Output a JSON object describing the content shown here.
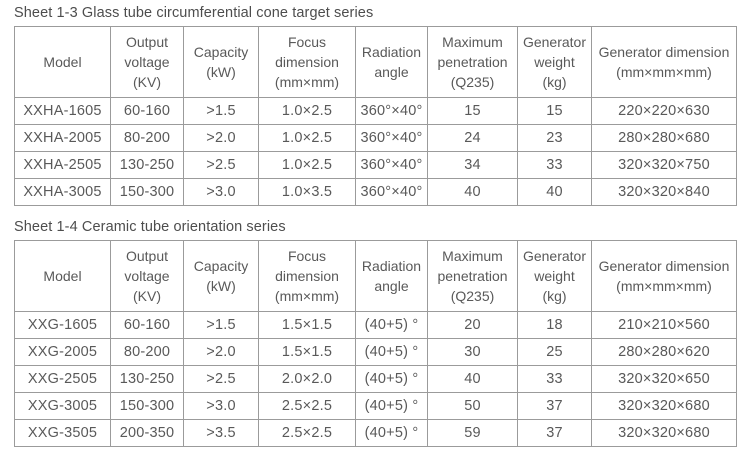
{
  "page": {
    "background_color": "#ffffff",
    "text_color": "#595959",
    "border_color": "#9b9b9b"
  },
  "tables": [
    {
      "title": "Sheet 1-3 Glass tube circumferential cone target series",
      "headers": [
        "Model",
        "Output\nvoltage\n(KV)",
        "Capacity\n(kW)",
        "Focus\ndimension\n(mm×mm)",
        "Radiation\nangle",
        "Maximum\npenetration\n(Q235)",
        "Generator\nweight\n(kg)",
        "Generator dimension\n(mm×mm×mm)"
      ],
      "rows": [
        [
          "XXHA-1605",
          "60-160",
          ">1.5",
          "1.0×2.5",
          "360°×40°",
          "15",
          "15",
          "220×220×630"
        ],
        [
          "XXHA-2005",
          "80-200",
          ">2.0",
          "1.0×2.5",
          "360°×40°",
          "24",
          "23",
          "280×280×680"
        ],
        [
          "XXHA-2505",
          "130-250",
          ">2.5",
          "1.0×2.5",
          "360°×40°",
          "34",
          "33",
          "320×320×750"
        ],
        [
          "XXHA-3005",
          "150-300",
          ">3.0",
          "1.0×3.5",
          "360°×40°",
          "40",
          "40",
          "320×320×840"
        ]
      ]
    },
    {
      "title": "Sheet 1-4 Ceramic tube orientation series",
      "headers": [
        "Model",
        "Output\nvoltage\n(KV)",
        "Capacity\n(kW)",
        "Focus\ndimension\n(mm×mm)",
        "Radiation\nangle",
        "Maximum\npenetration\n(Q235)",
        "Generator\nweight\n(kg)",
        "Generator dimension\n(mm×mm×mm)"
      ],
      "rows": [
        [
          "XXG-1605",
          "60-160",
          ">1.5",
          "1.5×1.5",
          "(40+5) °",
          "20",
          "18",
          "210×210×560"
        ],
        [
          "XXG-2005",
          "80-200",
          ">2.0",
          "1.5×1.5",
          "(40+5) °",
          "30",
          "25",
          "280×280×620"
        ],
        [
          "XXG-2505",
          "130-250",
          ">2.5",
          "2.0×2.0",
          "(40+5) °",
          "40",
          "33",
          "320×320×650"
        ],
        [
          "XXG-3005",
          "150-300",
          ">3.0",
          "2.5×2.5",
          "(40+5) °",
          "50",
          "37",
          "320×320×680"
        ],
        [
          "XXG-3505",
          "200-350",
          ">3.5",
          "2.5×2.5",
          "(40+5) °",
          "59",
          "37",
          "320×320×680"
        ]
      ]
    }
  ]
}
